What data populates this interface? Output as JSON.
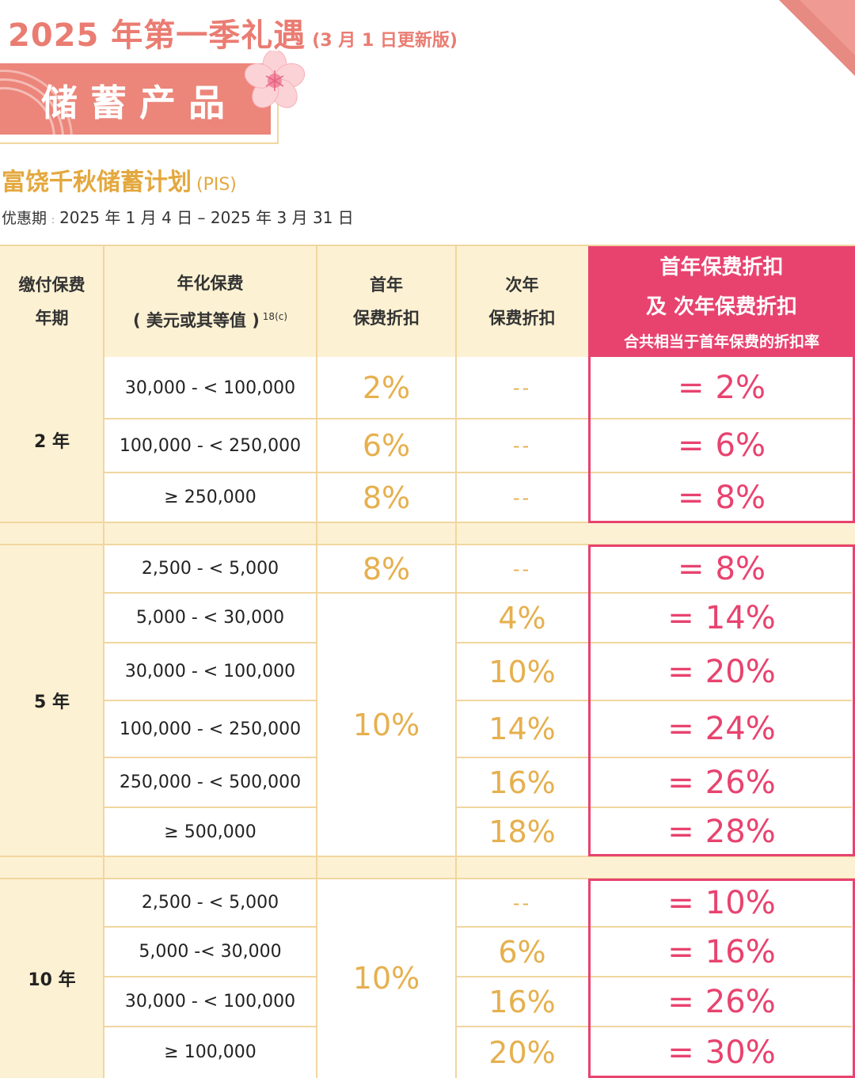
{
  "header": {
    "title": "2025 年第一季礼遇",
    "subtitle": "(3 月 1 日更新版)",
    "banner": "储蓄产品"
  },
  "plan": {
    "name": "富饶千秋储蓄计划",
    "code": "(PIS)",
    "period_label": "优惠期",
    "period_colon": ":",
    "period_value": "2025 年 1 月 4 日 – 2025 年 3 月 31 日"
  },
  "table": {
    "headers": {
      "term_line1": "缴付保费",
      "term_line2": "年期",
      "premium_line1": "年化保费",
      "premium_line2": "( 美元或其等值 )",
      "premium_note": "18(c)",
      "first_line1": "首年",
      "first_line2": "保费折扣",
      "second_line1": "次年",
      "second_line2": "保费折扣",
      "total_line1": "首年保费折扣",
      "total_line2": "及 次年保费折扣",
      "total_line3": "合共相当于首年保费的折扣率"
    },
    "groups": [
      {
        "term": "2 年",
        "rows": [
          {
            "premium": "30,000 - < 100,000",
            "first": "2%",
            "second": "--",
            "total": "2%"
          },
          {
            "premium": "100,000 - < 250,000",
            "first": "6%",
            "second": "--",
            "total": "6%"
          },
          {
            "premium": "≥ 250,000",
            "first": "8%",
            "second": "--",
            "total": "8%"
          }
        ]
      },
      {
        "term": "5 年",
        "first_merged": "10%",
        "rows": [
          {
            "premium": "2,500 - < 5,000",
            "first": "8%",
            "second": "--",
            "total": "8%"
          },
          {
            "premium": "5,000 - < 30,000",
            "second": "4%",
            "total": "14%"
          },
          {
            "premium": "30,000 - < 100,000",
            "second": "10%",
            "total": "20%"
          },
          {
            "premium": "100,000 - < 250,000",
            "second": "14%",
            "total": "24%"
          },
          {
            "premium": "250,000 - < 500,000",
            "second": "16%",
            "total": "26%"
          },
          {
            "premium": "≥ 500,000",
            "second": "18%",
            "total": "28%"
          }
        ]
      },
      {
        "term": "10 年",
        "first_merged": "10%",
        "rows": [
          {
            "premium": "2,500 - < 5,000",
            "second": "--",
            "total": "10%"
          },
          {
            "premium": "5,000 -< 30,000",
            "second": "6%",
            "total": "16%"
          },
          {
            "premium": "30,000 - < 100,000",
            "second": "16%",
            "total": "26%"
          },
          {
            "premium": "≥ 100,000",
            "second": "20%",
            "total": "30%"
          }
        ]
      }
    ],
    "equals_sign": "="
  },
  "colors": {
    "accent_coral": "#ec857a",
    "accent_gold": "#e6b04e",
    "accent_pink": "#e8436f",
    "header_fill": "#fdf1d3"
  }
}
